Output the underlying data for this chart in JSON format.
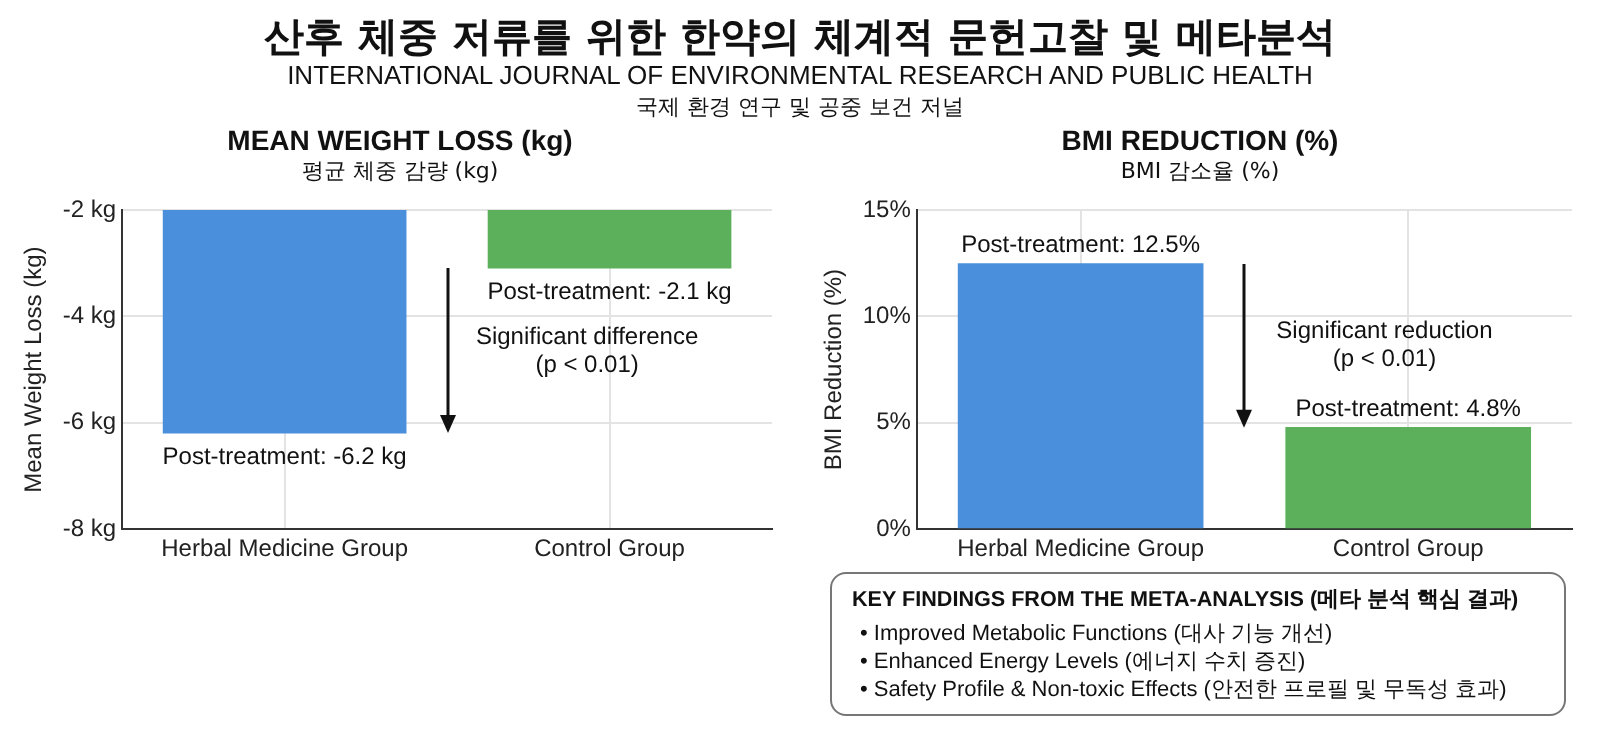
{
  "chart_data": [
    {
      "type": "other",
      "title": "산후 체중 저류를 위한 한약의 체계적 문헌고찰 및 메타분석",
      "subtitle": "INTERNATIONAL JOURNAL OF ENVIRONMENTAL RESEARCH AND PUBLIC HEALTH",
      "annotations": [
        "국제 환경 연구 및 공중 보건 저널"
      ]
    },
    {
      "type": "bar",
      "title": "MEAN WEIGHT LOSS (kg)",
      "subtitle": "평균 체중 감량 (kg)",
      "ylabel": "Mean Weight Loss (kg)",
      "categories": [
        "Herbal Medicine Group",
        "Control Group"
      ],
      "values": [
        -6.2,
        -3.1
      ],
      "colors": [
        "#4a8fdb",
        "#5cb05c"
      ],
      "ylim": [
        -8,
        -2
      ],
      "yticks": [
        {
          "value": -8,
          "label": "-8 kg"
        },
        {
          "value": -6,
          "label": "-6 kg"
        },
        {
          "value": -4,
          "label": "-4 kg"
        },
        {
          "value": -2,
          "label": "-2 kg"
        }
      ],
      "grid": true,
      "legend": false,
      "annotations": [
        {
          "text": "Post-treatment: -6.2 kg",
          "x": "Herbal Medicine Group",
          "y": -6.2
        },
        {
          "text": "Post-treatment: -2.1 kg",
          "x": "Control Group",
          "y": -3.1
        },
        "Significant difference (p < 0.01)"
      ]
    },
    {
      "type": "bar",
      "title": "BMI REDUCTION (%)",
      "subtitle": "BMI 감소율 (%)",
      "ylabel": "BMI Reduction (%)",
      "categories": [
        "Herbal Medicine Group",
        "Control Group"
      ],
      "values": [
        12.5,
        4.8
      ],
      "colors": [
        "#4a8fdb",
        "#5cb05c"
      ],
      "ylim": [
        0,
        15
      ],
      "yticks": [
        {
          "value": 0,
          "label": "0%"
        },
        {
          "value": 5,
          "label": "5%"
        },
        {
          "value": 10,
          "label": "10%"
        },
        {
          "value": 15,
          "label": "15%"
        }
      ],
      "grid": true,
      "legend": false,
      "annotations": [
        {
          "text": "Post-treatment: 12.5%",
          "x": "Herbal Medicine Group",
          "y": 12.5
        },
        {
          "text": "Post-treatment: 4.8%",
          "x": "Control Group",
          "y": 4.8
        },
        "Significant reduction (p < 0.01)"
      ]
    },
    {
      "type": "other",
      "title": "KEY FINDINGS FROM THE META-ANALYSIS (메타 분석 핵심 결과)",
      "annotations": [
        "• Improved Metabolic Functions (대사 기능 개선)",
        "• Enhanced Energy Levels (에너지 수치 증진)",
        "• Safety Profile & Non-toxic Effects (안전한 프로필 및 무독성 효과)"
      ]
    }
  ]
}
